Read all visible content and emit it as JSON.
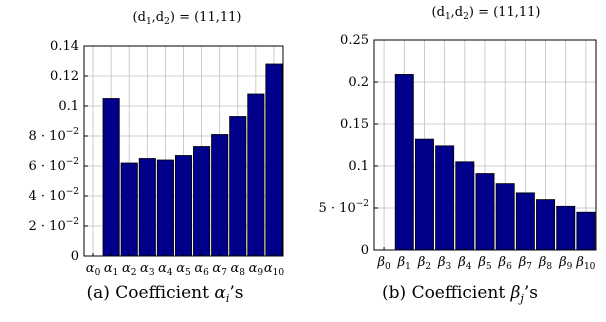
{
  "chart_data": [
    {
      "type": "bar",
      "title": "(d1,d2) = (11,11)",
      "title_parts": {
        "prefix": "(d",
        "sub1": "1",
        "mid": ",d",
        "sub2": "2",
        "suffix": ") = (11,11)"
      },
      "caption_label": "(a) Coefficient ",
      "caption_symbol": "α",
      "caption_sub": "i",
      "caption_suffix": "’s",
      "x": [
        0,
        1,
        2,
        3,
        4,
        5,
        6,
        7,
        8,
        9,
        10
      ],
      "x_symbol": "α",
      "categories": [
        "α0",
        "α1",
        "α2",
        "α3",
        "α4",
        "α5",
        "α6",
        "α7",
        "α8",
        "α9",
        "α10"
      ],
      "values": [
        0,
        0.105,
        0.062,
        0.065,
        0.064,
        0.067,
        0.073,
        0.081,
        0.093,
        0.108,
        0.128
      ],
      "ylim": [
        0,
        0.14
      ],
      "yticks": [
        {
          "v": 0,
          "label": "0"
        },
        {
          "v": 0.02,
          "mant": "2 · 10",
          "exp": "−2"
        },
        {
          "v": 0.04,
          "mant": "4 · 10",
          "exp": "−2"
        },
        {
          "v": 0.06,
          "mant": "6 · 10",
          "exp": "−2"
        },
        {
          "v": 0.08,
          "mant": "8 · 10",
          "exp": "−2"
        },
        {
          "v": 0.1,
          "label": "0.1"
        },
        {
          "v": 0.12,
          "label": "0.12"
        },
        {
          "v": 0.14,
          "label": "0.14"
        }
      ],
      "grid": true,
      "bar_color": "#00008b"
    },
    {
      "type": "bar",
      "title": "(d1,d2) = (11,11)",
      "title_parts": {
        "prefix": "(d",
        "sub1": "1",
        "mid": ",d",
        "sub2": "2",
        "suffix": ") = (11,11)"
      },
      "caption_label": "(b) Coefficient ",
      "caption_symbol": "β",
      "caption_sub": "j",
      "caption_suffix": "’s",
      "x": [
        0,
        1,
        2,
        3,
        4,
        5,
        6,
        7,
        8,
        9,
        10
      ],
      "x_symbol": "β",
      "categories": [
        "β0",
        "β1",
        "β2",
        "β3",
        "β4",
        "β5",
        "β6",
        "β7",
        "β8",
        "β9",
        "β10"
      ],
      "values": [
        0,
        0.209,
        0.132,
        0.124,
        0.105,
        0.091,
        0.079,
        0.068,
        0.06,
        0.052,
        0.045
      ],
      "ylim": [
        0,
        0.25
      ],
      "yticks": [
        {
          "v": 0,
          "label": "0"
        },
        {
          "v": 0.05,
          "mant": "5 · 10",
          "exp": "−2"
        },
        {
          "v": 0.1,
          "label": "0.1"
        },
        {
          "v": 0.15,
          "label": "0.15"
        },
        {
          "v": 0.2,
          "label": "0.2"
        },
        {
          "v": 0.25,
          "label": "0.25"
        }
      ],
      "grid": true,
      "bar_color": "#00008b"
    }
  ]
}
